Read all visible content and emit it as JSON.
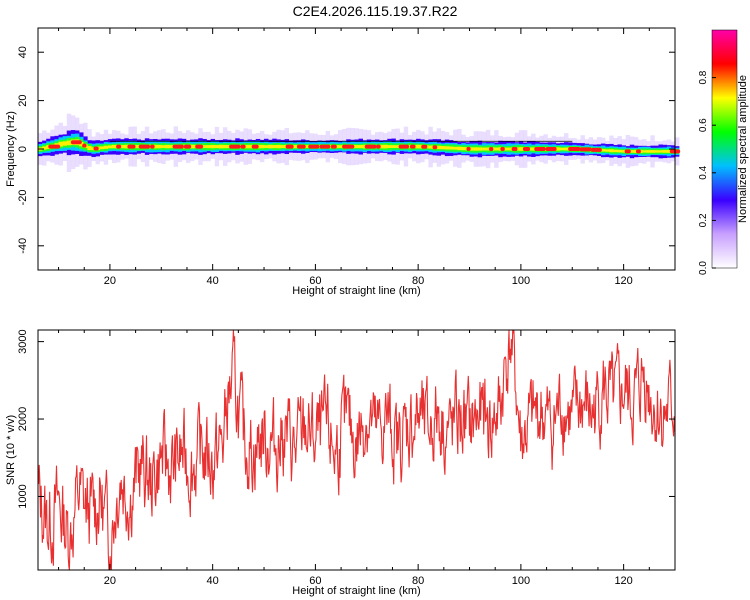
{
  "page": {
    "title": "C2E4.2026.115.19.37.R22"
  },
  "chart_data": [
    {
      "type": "heatmap",
      "xlabel": "Height of straight line (km)",
      "ylabel": "Frequency (Hz)",
      "xlim": [
        6,
        130
      ],
      "ylim": [
        -50,
        50
      ],
      "xticks": [
        20,
        40,
        60,
        80,
        100,
        120
      ],
      "yticks": [
        -40,
        -20,
        0,
        20,
        40
      ],
      "grid": false,
      "colorbar": {
        "label": "Normalized spectral amplitude",
        "range": [
          0,
          1
        ],
        "ticks": [
          0.0,
          0.2,
          0.4,
          0.6,
          0.8
        ],
        "colors": [
          "#ffffff",
          "#c8a0ff",
          "#3a00ff",
          "#00c0ff",
          "#00ff00",
          "#ffff00",
          "#ff0000",
          "#ff00aa"
        ]
      },
      "ridge": {
        "x": [
          6,
          10,
          13,
          16,
          20,
          30,
          40,
          50,
          60,
          70,
          80,
          90,
          100,
          110,
          120,
          130
        ],
        "center_freq": [
          0,
          2,
          3,
          0,
          1,
          1,
          1,
          1,
          1,
          1,
          1,
          0,
          0,
          0,
          -1,
          -1
        ],
        "half_width": [
          3,
          4,
          5,
          3,
          3,
          3,
          3,
          3,
          2.5,
          3,
          3,
          3,
          3,
          2.5,
          2.5,
          2.5
        ]
      }
    },
    {
      "type": "line",
      "xlabel": "Height of straight line (km)",
      "ylabel": "SNR (10 * v/v)",
      "xlim": [
        6,
        130
      ],
      "ylim": [
        50,
        3150
      ],
      "xticks": [
        20,
        40,
        60,
        80,
        100,
        120
      ],
      "yticks": [
        1000,
        2000,
        3000
      ],
      "grid": false,
      "series": [
        {
          "color": "#e83030",
          "x": [
            6,
            8,
            10,
            12,
            14,
            16,
            18,
            20,
            22,
            24,
            26,
            28,
            30,
            32,
            34,
            36,
            38,
            40,
            42,
            43,
            44,
            46,
            48,
            50,
            52,
            54,
            56,
            58,
            60,
            62,
            64,
            66,
            68,
            70,
            72,
            74,
            76,
            78,
            80,
            82,
            84,
            86,
            88,
            90,
            92,
            94,
            96,
            97,
            98,
            99,
            100,
            102,
            104,
            106,
            108,
            110,
            112,
            114,
            116,
            118,
            120,
            122,
            124,
            126,
            128,
            130
          ],
          "values": [
            1000,
            650,
            900,
            500,
            1050,
            750,
            1000,
            500,
            1300,
            1000,
            1400,
            1150,
            1500,
            1350,
            1550,
            1400,
            1600,
            1450,
            1700,
            2300,
            2500,
            1750,
            1600,
            1800,
            1650,
            1850,
            1550,
            1900,
            1700,
            1850,
            1600,
            1950,
            1700,
            2100,
            1750,
            2000,
            1650,
            1900,
            2000,
            1850,
            2100,
            1800,
            2000,
            1900,
            2050,
            1900,
            2150,
            2700,
            3000,
            2450,
            1700,
            1950,
            2100,
            1850,
            2250,
            1950,
            2200,
            2050,
            2400,
            2150,
            2350,
            2200,
            2600,
            2150,
            2050,
            2200
          ]
        }
      ]
    }
  ]
}
